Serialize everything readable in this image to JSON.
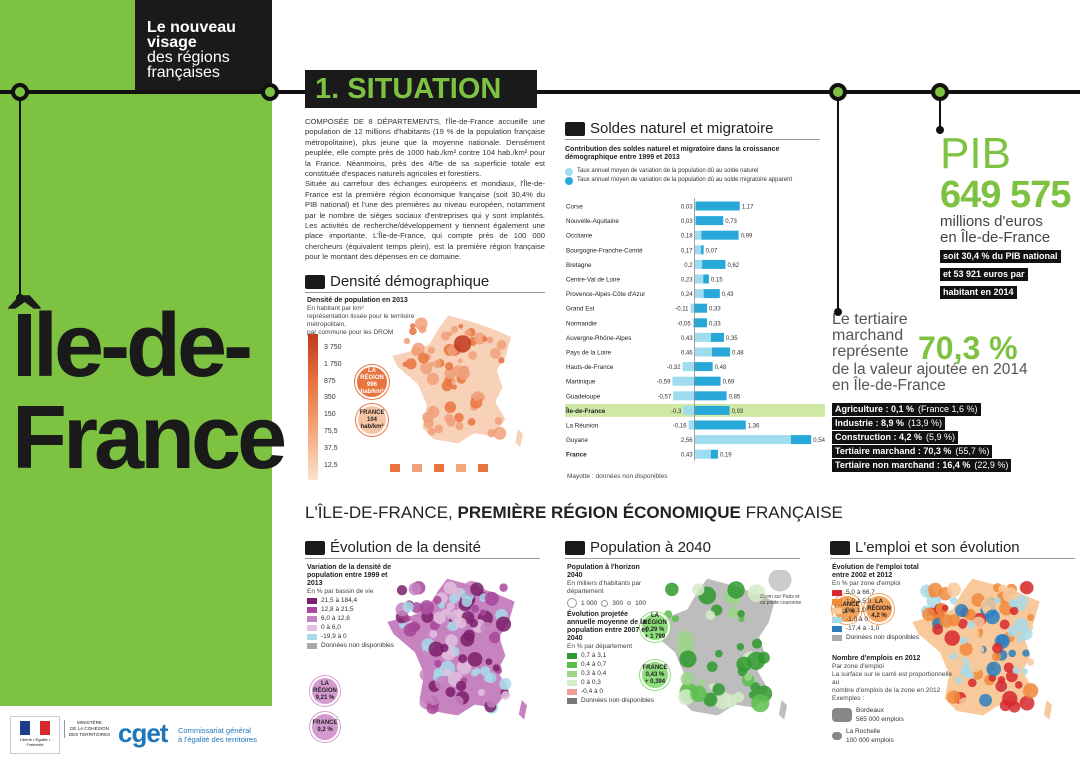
{
  "header": {
    "brand": [
      "Le nouveau",
      "visage",
      "des régions",
      "françaises"
    ],
    "region_name": [
      "Île-de-",
      "France"
    ],
    "section_title": "1. SITUATION"
  },
  "intro": [
    "COMPOSÉE DE 8 DÉPARTEMENTS, l'Île-de-France accueille une population de 12 millions d'habitants (19 % de la population française métropolitaine), plus jeune que la moyenne nationale. Densément peuplée, elle compte près de 1000 hab./km² contre 104 hab./km² pour la France. Néanmoins, près des 4/5e de sa superficie totale est constituée d'espaces naturels agricoles et forestiers.",
    "Située au carrefour des échanges européens et mondiaux, l'Île-de-France est la première région économique française (soit 30,4% du PIB national) et l'une des premières au niveau européen, notamment par le nombre de sièges sociaux d'entreprises qui y sont implantés. Les activités de recherche/développement y tiennent également une place importante. L'Île-de-France, qui compte près de 100 000 chercheurs (équivalent temps plein), est la première région française pour le montant des dépenses en ce domaine."
  ],
  "density": {
    "title": "Densité démographique",
    "subtitle": "Densité de population en 2013",
    "notes": [
      "En habitant par km²",
      "représentation lissée pour le territoire métropolitain,",
      "par commune pour les DROM"
    ],
    "scale": [
      "3 750",
      "1 750",
      "875",
      "350",
      "150",
      "75,5",
      "37,5",
      "12,5"
    ],
    "region_circle": [
      "LA RÉGION",
      "996 hab/km²"
    ],
    "france_circle": [
      "FRANCE",
      "104 hab/km²"
    ]
  },
  "soldes": {
    "title": "Soldes naturel et migratoire",
    "subtitle": "Contribution des soldes naturel et migratoire dans la croissance démographique entre 1999 et 2013",
    "footnote": "Mayotte : données non disponibles",
    "categories": [
      "Corse",
      "Nouvelle-Aquitaine",
      "Occitanie",
      "Bourgogne-Franche-Comté",
      "Bretagne",
      "Centre-Val de Loire",
      "Provence-Alpes-Côte d'Azur",
      "Grand Est",
      "Normandie",
      "Auvergne-Rhône-Alpes",
      "Pays de la Loire",
      "Hauts-de-France",
      "Martinique",
      "Guadeloupe",
      "Île-de-France",
      "La Réunion",
      "Guyane",
      "France"
    ],
    "xlim": [
      -1,
      3.2
    ],
    "series": [
      {
        "name": "Taux annuel moyen de variation de la population dû au solde naturel",
        "color": "#9fdcef",
        "values": [
          0.03,
          0.03,
          0.18,
          0.17,
          0.2,
          0.23,
          0.24,
          -0.11,
          -0.05,
          0.43,
          0.46,
          -0.32,
          -0.59,
          -0.57,
          -0.3,
          -0.16,
          2.56,
          0.43
        ],
        "value_labels": [
          "0,03",
          "0,03",
          "0,18",
          "0,17",
          "0,2",
          "0,23",
          "0,24",
          "-0,11",
          "-0,05",
          "0,43",
          "0,46",
          "-0,32",
          "-0,59",
          "-0,57",
          "-0,3",
          "-0,16",
          "2,56",
          "0,43"
        ]
      },
      {
        "name": "Taux annuel moyen de variation de la population dû au solde migratoire apparent",
        "color": "#27a8d9",
        "values": [
          1.17,
          0.73,
          0.99,
          0.07,
          0.62,
          0.15,
          0.43,
          0.33,
          0.33,
          0.35,
          0.48,
          0.48,
          0.69,
          0.85,
          0.93,
          1.36,
          0.54,
          0.19
        ],
        "value_labels": [
          "1,17",
          "0,73",
          "0,99",
          "0,07",
          "0,62",
          "0,15",
          "0,43",
          "0,33",
          "0,33",
          "0,35",
          "0,48",
          "0,48",
          "0,69",
          "0,85",
          "0,93",
          "1,36",
          "0,54",
          "0,19"
        ]
      }
    ]
  },
  "pib": {
    "label": "PIB",
    "value": "649 575",
    "unit": [
      "millions d'euros",
      "en Île-de-France"
    ],
    "details": [
      "soit 30,4 % du PIB national",
      "et 53 921 euros par",
      "habitant en 2014"
    ]
  },
  "tertiaire": {
    "lead": [
      "Le tertiaire",
      "marchand",
      "représente"
    ],
    "value": "70,3 %",
    "tail": [
      "de la valeur ajoutée en 2014",
      "en Île-de-France"
    ],
    "sectors": [
      [
        "Agriculture : 0,1 %",
        "(France 1,6 %)"
      ],
      [
        "Industrie : 8,9 %",
        "(13,9 %)"
      ],
      [
        "Construction : 4,2 %",
        "(5,9 %)"
      ],
      [
        "Tertiaire marchand : 70,3 %",
        "(55,7 %)"
      ],
      [
        "Tertiaire non marchand : 16,4 %",
        "(22,9 %)"
      ]
    ]
  },
  "economy": {
    "title": [
      "L'ÎLE-DE-FRANCE, ",
      "PREMIÈRE RÉGION ÉCONOMIQUE",
      " FRANÇAISE"
    ],
    "panels": [
      {
        "title": "Évolution de la densité",
        "subtitle": "Variation de la densité de population entre 1999 et 2013",
        "note": "En % par bassin de vie",
        "legend": [
          "21,5 à 184,4",
          "12,8 à 21,5",
          "6,0 à 12,8",
          "0 à 6,0",
          "-19,9 à 0",
          "Données non disponibles"
        ],
        "circles": [
          [
            "LA RÉGION",
            "9,21 %"
          ],
          [
            "FRANCE",
            "9,2 %"
          ]
        ]
      },
      {
        "title": "Population à 2040",
        "subtitle": "Population à l'horizon 2040",
        "note": "En milliers d'habitants par département",
        "sizes": [
          "1 000",
          "300",
          "100"
        ],
        "subtitle2": "Évolution projetée annuelle moyenne de la population entre 2007 et 2040",
        "note2": "En % par département",
        "legend": [
          "0,7 à 3,1",
          "0,4 à 0,7",
          "0,3 à 0,4",
          "0 à 0,3",
          "-0,4 à 0",
          "Données non disponibles"
        ],
        "zoom": "Zoom sur Paris et sa petite couronne",
        "circles": [
          [
            "LA RÉGION",
            "0,29 %",
            "+ 1 799"
          ],
          [
            "FRANCE",
            "0,43 %",
            "+ 0,394"
          ]
        ]
      },
      {
        "title": "L'emploi et son évolution",
        "subtitle": "Évolution de l'emploi total entre 2002 et 2012",
        "note": "En % par zone d'emploi",
        "legend": [
          "5,0 à 66,7",
          "1,0 à 5,0",
          "0 à 1,0",
          "-1,0 à 0",
          "-17,4 à -1,0",
          "Données non disponibles"
        ],
        "circles": [
          [
            "FRANCE",
            "3,8 %"
          ],
          [
            "LA RÉGION",
            "4,2 %"
          ]
        ],
        "subtitle2": "Nombre d'emplois en 2012",
        "note2": [
          "Par zone d'emploi",
          "La surface sur le carré est proportionnelle au",
          "nombre d'emplois de la zone en 2012",
          "Exemples :"
        ],
        "examples": [
          [
            "Bordeaux",
            "565 000 emplois"
          ],
          [
            "La Rochelle",
            "100 000 emplois"
          ]
        ]
      }
    ]
  },
  "footer": {
    "ministry": [
      "MINISTÈRE",
      "DE LA COHÉSION",
      "DES TERRITOIRES"
    ],
    "republic": "Liberté • Égalité • Fraternité",
    "agency": "cget",
    "agency_name": [
      "Commissariat général",
      "à l'égalité des territoires"
    ]
  }
}
